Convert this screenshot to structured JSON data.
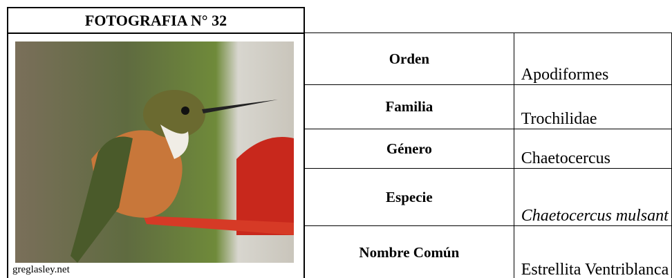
{
  "header": {
    "title": "FOTOGRAFIA N° 32"
  },
  "photo": {
    "credit": "greglasley.net"
  },
  "table": {
    "rows": [
      [
        "Orden",
        "Apodiformes"
      ],
      [
        "Familia",
        "Trochilidae"
      ],
      [
        "Género",
        "Chaetocercus"
      ],
      [
        "Especie",
        "Chaetocercus mulsant"
      ],
      [
        "Nombre Común",
        "Estrellita Ventriblanca"
      ]
    ]
  }
}
